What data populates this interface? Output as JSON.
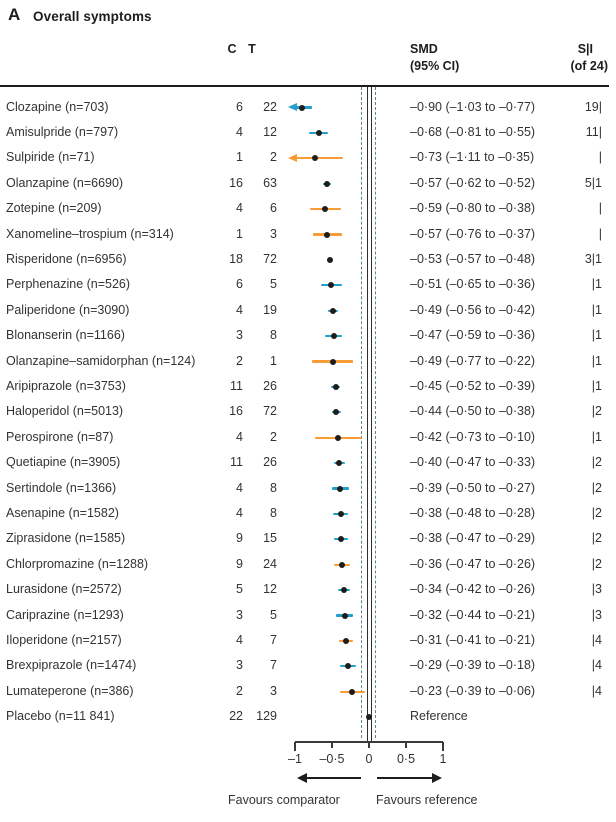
{
  "title": {
    "panel": "A",
    "text": "Overall symptoms"
  },
  "columns": {
    "c": "C",
    "t": "T",
    "smd_line1": "SMD",
    "smd_line2": "(95% CI)",
    "si_line1": "S|I",
    "si_line2": "(of 24)"
  },
  "colors": {
    "teal": "#22a0cb",
    "orange": "#f89c35",
    "black": "#1d1d1b",
    "dashed_line": "#5e8391"
  },
  "chart_data": {
    "type": "forest",
    "title": "Overall symptoms",
    "x_axis": {
      "min": -1,
      "max": 1,
      "ticks": [
        -1,
        -0.5,
        0,
        0.5,
        1
      ],
      "tick_labels": [
        "–1",
        "–0·5",
        "0",
        "0·5",
        "1"
      ],
      "reference_line_at": 0,
      "dashed_lines_at": [
        -0.1,
        0.1
      ],
      "left_direction_label": "Favours comparator",
      "right_direction_label": "Favours reference"
    },
    "rows": [
      {
        "label": "Clozapine (n=703)",
        "c": "6",
        "t": "22",
        "smd": -0.9,
        "low": -1.03,
        "high": -0.77,
        "ci_text": "–0·90 (–1·03 to –0·77)",
        "si": "19|",
        "color": "teal",
        "clipped_low": true
      },
      {
        "label": "Amisulpride (n=797)",
        "c": "4",
        "t": "12",
        "smd": -0.68,
        "low": -0.81,
        "high": -0.55,
        "ci_text": "–0·68 (–0·81 to –0·55)",
        "si": "11|",
        "color": "teal",
        "clipped_low": false
      },
      {
        "label": "Sulpiride (n=71)",
        "c": "1",
        "t": "2",
        "smd": -0.73,
        "low": -1.11,
        "high": -0.35,
        "ci_text": "–0·73 (–1·11 to –0·35)",
        "si": "|",
        "color": "orange",
        "clipped_low": true
      },
      {
        "label": "Olanzapine (n=6690)",
        "c": "16",
        "t": "63",
        "smd": -0.57,
        "low": -0.62,
        "high": -0.52,
        "ci_text": "–0·57 (–0·62 to –0·52)",
        "si": "5|1",
        "color": "teal",
        "clipped_low": false
      },
      {
        "label": "Zotepine (n=209)",
        "c": "4",
        "t": "6",
        "smd": -0.59,
        "low": -0.8,
        "high": -0.38,
        "ci_text": "–0·59 (–0·80 to –0·38)",
        "si": "|",
        "color": "orange",
        "clipped_low": false
      },
      {
        "label": "Xanomeline–trospium (n=314)",
        "c": "1",
        "t": "3",
        "smd": -0.57,
        "low": -0.76,
        "high": -0.37,
        "ci_text": "–0·57 (–0·76 to –0·37)",
        "si": "|",
        "color": "orange",
        "clipped_low": false
      },
      {
        "label": "Risperidone (n=6956)",
        "c": "18",
        "t": "72",
        "smd": -0.53,
        "low": -0.57,
        "high": -0.48,
        "ci_text": "–0·53 (–0·57 to –0·48)",
        "si": "3|1",
        "color": "teal",
        "clipped_low": false
      },
      {
        "label": "Perphenazine (n=526)",
        "c": "6",
        "t": "5",
        "smd": -0.51,
        "low": -0.65,
        "high": -0.36,
        "ci_text": "–0·51 (–0·65 to –0·36)",
        "si": "|1",
        "color": "teal",
        "clipped_low": false
      },
      {
        "label": "Paliperidone (n=3090)",
        "c": "4",
        "t": "19",
        "smd": -0.49,
        "low": -0.56,
        "high": -0.42,
        "ci_text": "–0·49 (–0·56 to –0·42)",
        "si": "|1",
        "color": "teal",
        "clipped_low": false
      },
      {
        "label": "Blonanserin (n=1166)",
        "c": "3",
        "t": "8",
        "smd": -0.47,
        "low": -0.59,
        "high": -0.36,
        "ci_text": "–0·47 (–0·59 to –0·36)",
        "si": "|1",
        "color": "teal",
        "clipped_low": false
      },
      {
        "label": "Olanzapine–samidorphan (n=124)",
        "c": "2",
        "t": "1",
        "smd": -0.49,
        "low": -0.77,
        "high": -0.22,
        "ci_text": "–0·49 (–0·77 to –0·22)",
        "si": "|1",
        "color": "orange",
        "clipped_low": false
      },
      {
        "label": "Aripiprazole (n=3753)",
        "c": "11",
        "t": "26",
        "smd": -0.45,
        "low": -0.52,
        "high": -0.39,
        "ci_text": "–0·45 (–0·52 to –0·39)",
        "si": "|1",
        "color": "teal",
        "clipped_low": false
      },
      {
        "label": "Haloperidol (n=5013)",
        "c": "16",
        "t": "72",
        "smd": -0.44,
        "low": -0.5,
        "high": -0.38,
        "ci_text": "–0·44 (–0·50 to –0·38)",
        "si": "|2",
        "color": "teal",
        "clipped_low": false
      },
      {
        "label": "Perospirone (n=87)",
        "c": "4",
        "t": "2",
        "smd": -0.42,
        "low": -0.73,
        "high": -0.1,
        "ci_text": "–0·42 (–0·73 to –0·10)",
        "si": "|1",
        "color": "orange",
        "clipped_low": false
      },
      {
        "label": "Quetiapine (n=3905)",
        "c": "11",
        "t": "26",
        "smd": -0.4,
        "low": -0.47,
        "high": -0.33,
        "ci_text": "–0·40 (–0·47 to –0·33)",
        "si": "|2",
        "color": "teal",
        "clipped_low": false
      },
      {
        "label": "Sertindole (n=1366)",
        "c": "4",
        "t": "8",
        "smd": -0.39,
        "low": -0.5,
        "high": -0.27,
        "ci_text": "–0·39 (–0·50 to –0·27)",
        "si": "|2",
        "color": "teal",
        "clipped_low": false
      },
      {
        "label": "Asenapine (n=1582)",
        "c": "4",
        "t": "8",
        "smd": -0.38,
        "low": -0.48,
        "high": -0.28,
        "ci_text": "–0·38 (–0·48 to –0·28)",
        "si": "|2",
        "color": "teal",
        "clipped_low": false
      },
      {
        "label": "Ziprasidone (n=1585)",
        "c": "9",
        "t": "15",
        "smd": -0.38,
        "low": -0.47,
        "high": -0.29,
        "ci_text": "–0·38 (–0·47 to –0·29)",
        "si": "|2",
        "color": "teal",
        "clipped_low": false
      },
      {
        "label": "Chlorpromazine (n=1288)",
        "c": "9",
        "t": "24",
        "smd": -0.36,
        "low": -0.47,
        "high": -0.26,
        "ci_text": "–0·36 (–0·47 to –0·26)",
        "si": "|2",
        "color": "orange",
        "clipped_low": false
      },
      {
        "label": "Lurasidone (n=2572)",
        "c": "5",
        "t": "12",
        "smd": -0.34,
        "low": -0.42,
        "high": -0.26,
        "ci_text": "–0·34 (–0·42 to –0·26)",
        "si": "|3",
        "color": "teal",
        "clipped_low": false
      },
      {
        "label": "Cariprazine (n=1293)",
        "c": "3",
        "t": "5",
        "smd": -0.32,
        "low": -0.44,
        "high": -0.21,
        "ci_text": "–0·32 (–0·44 to –0·21)",
        "si": "|3",
        "color": "teal",
        "clipped_low": false
      },
      {
        "label": "Iloperidone (n=2157)",
        "c": "4",
        "t": "7",
        "smd": -0.31,
        "low": -0.41,
        "high": -0.21,
        "ci_text": "–0·31 (–0·41 to –0·21)",
        "si": "|4",
        "color": "orange",
        "clipped_low": false
      },
      {
        "label": "Brexpiprazole (n=1474)",
        "c": "3",
        "t": "7",
        "smd": -0.29,
        "low": -0.39,
        "high": -0.18,
        "ci_text": "–0·29 (–0·39 to –0·18)",
        "si": "|4",
        "color": "teal",
        "clipped_low": false
      },
      {
        "label": "Lumateperone (n=386)",
        "c": "2",
        "t": "3",
        "smd": -0.23,
        "low": -0.39,
        "high": -0.06,
        "ci_text": "–0·23 (–0·39 to –0·06)",
        "si": "|4",
        "color": "orange",
        "clipped_low": false
      },
      {
        "label": "Placebo (n=11 841)",
        "c": "22",
        "t": "129",
        "smd": 0,
        "low": null,
        "high": null,
        "ci_text": "Reference",
        "si": "",
        "color": "black",
        "clipped_low": false
      }
    ]
  }
}
